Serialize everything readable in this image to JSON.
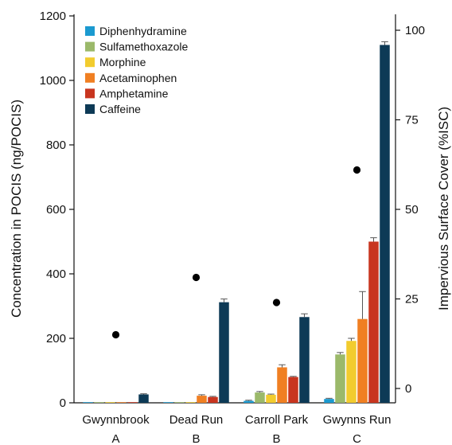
{
  "chart_data": {
    "type": "bar",
    "title": "",
    "ylabel": "Concentration in POCIS (ng/POCIS)",
    "y2label": "Impervious Surface Cover (%ISC)",
    "ylim": [
      0,
      1200
    ],
    "yticks": [
      0,
      200,
      400,
      600,
      800,
      1000,
      1200
    ],
    "y2lim": [
      -4,
      104
    ],
    "y2ticks": [
      0,
      25,
      50,
      75,
      100
    ],
    "categories": [
      "Gwynnbrook",
      "Dead Run",
      "Carroll Park",
      "Gwynns Run"
    ],
    "category_groups": [
      "A",
      "B",
      "B",
      "C"
    ],
    "legend_position": "top-left",
    "series": [
      {
        "name": "Diphenhydramine",
        "color": "#1b9ad0",
        "values": [
          0,
          0,
          6,
          12
        ],
        "errors": [
          0,
          0,
          2,
          2
        ]
      },
      {
        "name": "Sulfamethoxazole",
        "color": "#9bb96a",
        "values": [
          0,
          0,
          32,
          150
        ],
        "errors": [
          0,
          0,
          3,
          6
        ]
      },
      {
        "name": "Morphine",
        "color": "#f2cc2e",
        "values": [
          0,
          0,
          25,
          192
        ],
        "errors": [
          0,
          0,
          2,
          8
        ]
      },
      {
        "name": "Acetaminophen",
        "color": "#f07f22",
        "values": [
          0,
          22,
          110,
          260
        ],
        "errors": [
          0,
          3,
          8,
          85
        ]
      },
      {
        "name": "Amphetamine",
        "color": "#c8351f",
        "values": [
          0,
          18,
          80,
          500
        ],
        "errors": [
          0,
          2,
          2,
          12
        ]
      },
      {
        "name": "Caffeine",
        "color": "#0d3a56",
        "values": [
          26,
          312,
          266,
          1110
        ],
        "errors": [
          2,
          10,
          10,
          10
        ]
      }
    ],
    "isc_series": {
      "marker": "circle",
      "color": "#000000",
      "values": [
        15,
        31,
        24,
        61
      ]
    }
  }
}
